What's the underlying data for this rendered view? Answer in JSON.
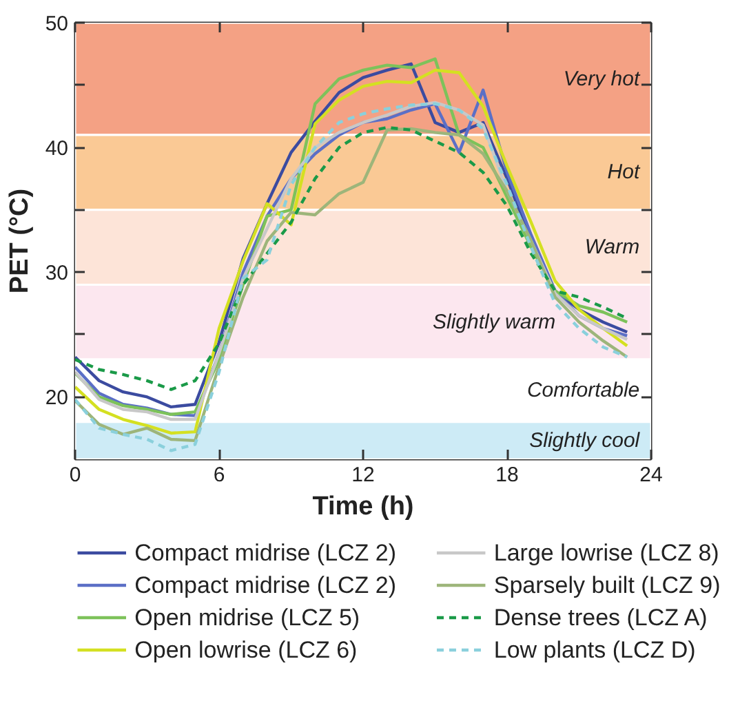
{
  "chart_data": {
    "type": "line",
    "xlabel": "Time (h)",
    "ylabel": "PET (°C)",
    "x": [
      0,
      1,
      2,
      3,
      4,
      5,
      6,
      7,
      8,
      9,
      10,
      11,
      12,
      13,
      14,
      15,
      16,
      17,
      18,
      19,
      20,
      21,
      22,
      23
    ],
    "xlim": [
      0,
      24
    ],
    "ylim": [
      15,
      50
    ],
    "xticks": [
      0,
      6,
      12,
      18,
      24
    ],
    "yticks": [
      20,
      {
        "value": 25,
        "label": null
      },
      30,
      {
        "value": 35,
        "label": null
      },
      40,
      {
        "value": 45,
        "label": null
      },
      50
    ],
    "line_style": "solid",
    "legend": "bottom",
    "bands": [
      {
        "axis": "y",
        "from": 41,
        "to": 50,
        "label": "Very hot",
        "color": "#f4a184"
      },
      {
        "axis": "y",
        "from": 35,
        "to": 41,
        "label": "Hot",
        "color": "#fac995"
      },
      {
        "axis": "y",
        "from": 29,
        "to": 35,
        "label": "Warm",
        "color": "#fde4d8"
      },
      {
        "axis": "y",
        "from": 23,
        "to": 29,
        "label": "Slightly warm",
        "color": "#fce7ef"
      },
      {
        "axis": "y",
        "from": 18,
        "to": 23,
        "label": "Comfortable",
        "color": "#ffffff"
      },
      {
        "axis": "y",
        "from": 15,
        "to": 18,
        "label": "Slightly cool",
        "color": "#cdebf6"
      }
    ],
    "series": [
      {
        "name": "Compact midrise (LCZ 2)",
        "color": "#3b4ba0",
        "values": [
          23.2,
          21.3,
          20.4,
          20.0,
          19.2,
          19.4,
          24.4,
          31.1,
          35.5,
          39.6,
          42.1,
          44.4,
          45.6,
          46.2,
          46.7,
          42.0,
          41.2,
          42.0,
          37.5,
          32.5,
          28.5,
          27.0,
          26.0,
          25.2
        ]
      },
      {
        "name": "Compact midrise (LCZ 2)",
        "color": "#5b6fc6",
        "values": [
          22.4,
          20.3,
          19.4,
          19.1,
          18.6,
          18.5,
          23.5,
          30.0,
          34.5,
          37.5,
          39.5,
          41.0,
          42.0,
          42.3,
          43.0,
          43.5,
          39.6,
          44.6,
          38.0,
          33.0,
          28.5,
          26.5,
          25.5,
          24.9
        ]
      },
      {
        "name": "Open midrise (LCZ 5)",
        "color": "#7dc25a",
        "values": [
          21.9,
          20.0,
          19.3,
          19.0,
          18.6,
          18.8,
          23.0,
          29.0,
          34.5,
          35.0,
          43.5,
          45.5,
          46.2,
          46.6,
          46.4,
          47.1,
          41.0,
          40.0,
          36.0,
          32.0,
          28.5,
          27.3,
          26.8,
          26.0
        ]
      },
      {
        "name": "Open lowrise (LCZ 6)",
        "color": "#d4e021",
        "values": [
          20.8,
          19.0,
          18.2,
          17.7,
          17.1,
          17.2,
          25.5,
          30.9,
          35.5,
          33.8,
          41.9,
          43.8,
          44.9,
          45.3,
          45.2,
          46.2,
          46.0,
          43.3,
          38.5,
          34.0,
          29.3,
          27.0,
          25.5,
          24.1
        ]
      },
      {
        "name": "Large lowrise (LCZ 8)",
        "color": "#c8c8c8",
        "values": [
          22.0,
          19.8,
          19.0,
          18.8,
          18.2,
          18.2,
          23.5,
          29.5,
          33.5,
          37.5,
          40.0,
          41.2,
          42.0,
          42.6,
          43.3,
          43.6,
          43.0,
          41.8,
          36.5,
          32.5,
          28.3,
          26.5,
          25.5,
          24.6
        ]
      },
      {
        "name": "Sparsely built (LCZ 9)",
        "color": "#9db57a",
        "values": [
          19.7,
          17.8,
          17.0,
          17.5,
          16.6,
          16.5,
          22.5,
          28.0,
          32.5,
          34.8,
          34.6,
          36.3,
          37.2,
          41.4,
          41.5,
          41.2,
          41.0,
          39.5,
          36.5,
          32.5,
          28.0,
          26.0,
          24.5,
          23.2
        ]
      },
      {
        "name": "Dense trees (LCZ A)",
        "color": "#1a9a48",
        "line_style": "dashed",
        "values": [
          23.0,
          22.2,
          21.8,
          21.3,
          20.6,
          21.3,
          24.3,
          29.0,
          31.5,
          34.0,
          37.5,
          40.0,
          41.2,
          41.6,
          41.4,
          40.5,
          39.6,
          38.0,
          35.3,
          31.5,
          28.5,
          28.0,
          27.2,
          26.3
        ]
      },
      {
        "name": "Low plants (LCZ D)",
        "color": "#8ad0dc",
        "line_style": "dashed",
        "values": [
          19.8,
          17.5,
          17.0,
          16.6,
          15.7,
          16.2,
          22.0,
          29.5,
          31.0,
          37.0,
          40.0,
          42.0,
          42.7,
          43.1,
          43.4,
          43.5,
          43.0,
          41.5,
          37.0,
          32.0,
          27.5,
          25.5,
          24.0,
          23.2
        ]
      }
    ]
  }
}
